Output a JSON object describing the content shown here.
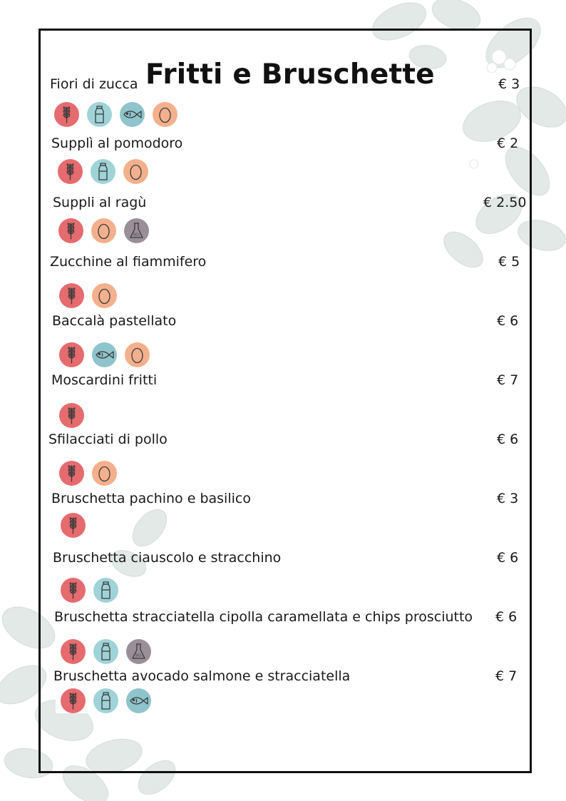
{
  "menu": {
    "title": "Fritti e Bruschette",
    "items": [
      {
        "name": "Fiori di zucca",
        "price": "€ 3",
        "allergens": [
          "gluten-icon",
          "milk-icon",
          "fish-icon",
          "egg-icon"
        ]
      },
      {
        "name": "Supplì al pomodoro",
        "price": "€ 2",
        "allergens": [
          "gluten-icon",
          "milk-icon",
          "egg-icon"
        ]
      },
      {
        "name": "Suppli al ragù",
        "price": "€ 2.50",
        "allergens": [
          "gluten-icon",
          "egg-icon",
          "sulphite-icon"
        ]
      },
      {
        "name": "Zucchine al fiammifero",
        "price": "€ 5",
        "allergens": [
          "gluten-icon",
          "egg-icon"
        ]
      },
      {
        "name": "Baccalà pastellato",
        "price": "€ 6",
        "allergens": [
          "gluten-icon",
          "fish-icon",
          "egg-icon"
        ]
      },
      {
        "name": "Moscardini fritti",
        "price": "€ 7",
        "allergens": [
          "gluten-icon"
        ]
      },
      {
        "name": "Sfilacciati di pollo",
        "price": "€ 6",
        "allergens": [
          "gluten-icon",
          "egg-icon"
        ]
      },
      {
        "name": "Bruschetta pachino e basilico",
        "price": "€ 3",
        "allergens": [
          "gluten-icon"
        ]
      },
      {
        "name": "Bruschetta ciauscolo e stracchino",
        "price": "€ 6",
        "allergens": [
          "gluten-icon",
          "milk-icon"
        ]
      },
      {
        "name": "Bruschetta stracciatella cipolla caramellata e chips prosciutto",
        "price": "€ 6",
        "allergens": [
          "gluten-icon",
          "milk-icon",
          "sulphite-icon"
        ]
      },
      {
        "name": "Bruschetta avocado salmone e stracciatella",
        "price": "€ 7",
        "allergens": [
          "gluten-icon",
          "milk-icon",
          "fish-icon"
        ]
      }
    ]
  },
  "colors": {
    "gluten": "#e56b6f",
    "milk": "#9fd3d8",
    "fish": "#8fc4cc",
    "egg": "#f4b08c",
    "sulphite": "#9a8f99",
    "frame": "#111111",
    "foliage": "#dfe6e3"
  }
}
